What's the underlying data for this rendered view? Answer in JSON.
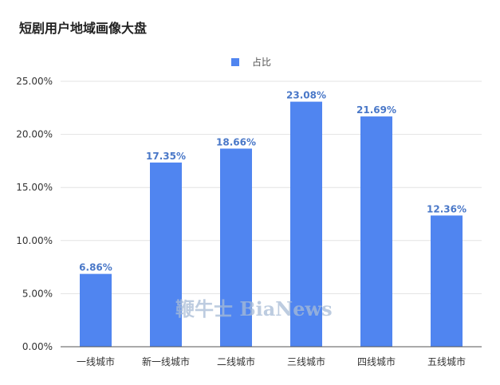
{
  "chart_data": {
    "type": "bar",
    "title": "短剧用户地域画像大盘",
    "categories": [
      "一线城市",
      "新一线城市",
      "二线城市",
      "三线城市",
      "四线城市",
      "五线城市"
    ],
    "series": [
      {
        "name": "占比",
        "values": [
          6.86,
          17.35,
          18.66,
          23.08,
          21.69,
          12.36
        ]
      }
    ],
    "data_labels": [
      "6.86%",
      "17.35%",
      "18.66%",
      "23.08%",
      "21.69%",
      "12.36%"
    ],
    "y_ticks": [
      "0.00%",
      "5.00%",
      "10.00%",
      "15.00%",
      "20.00%",
      "25.00%"
    ],
    "ylim": [
      0,
      25
    ],
    "grid": true,
    "legend_position": "top-center",
    "bar_color": "#5085f0",
    "label_color": "#4a78c8"
  },
  "watermark": "鞭牛士 BiaNews"
}
